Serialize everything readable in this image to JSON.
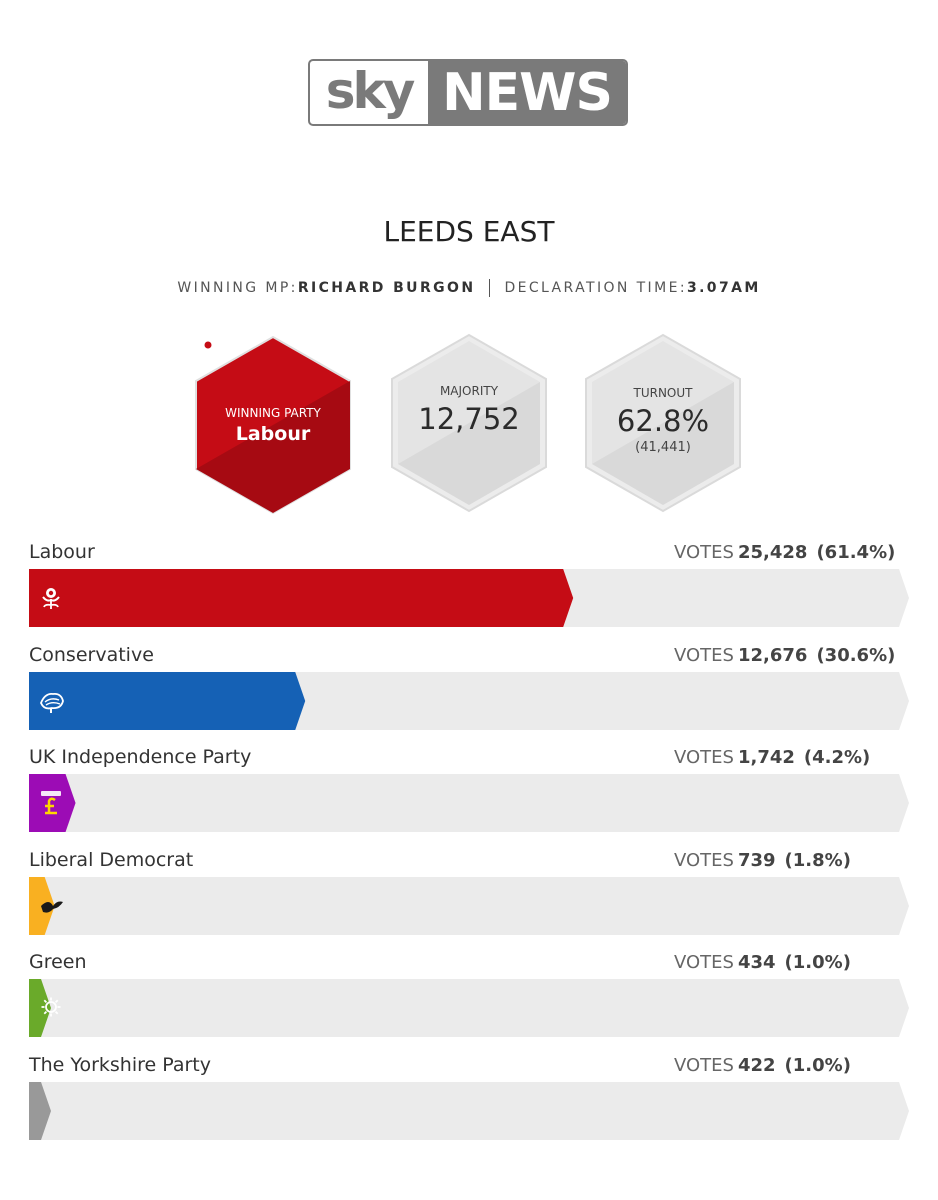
{
  "brand": {
    "sky": "sky",
    "news": "NEWS"
  },
  "constituency": "LEEDS EAST",
  "winning_mp_label": "WINNING MP:",
  "winning_mp": "RICHARD BURGON",
  "declaration_label": "DECLARATION TIME:",
  "declaration_time": "3.07AM",
  "winning_party": {
    "label": "WINNING PARTY",
    "name": "Labour",
    "color": "#c50c15"
  },
  "majority": {
    "label": "MAJORITY",
    "value": "12,752"
  },
  "turnout": {
    "label": "TURNOUT",
    "value": "62.8%",
    "count": "(41,441)"
  },
  "chart_data": {
    "type": "bar",
    "orientation": "horizontal",
    "votes_label": "VOTES",
    "xlim": [
      0,
      100
    ],
    "categories": [
      "Labour",
      "Conservative",
      "UK Independence Party",
      "Liberal Democrat",
      "Green",
      "The Yorkshire Party"
    ],
    "series": [
      {
        "values": [
          61.4,
          30.6,
          4.2,
          1.8,
          1.0,
          1.0
        ],
        "votes": [
          "25,428",
          "12,676",
          "1,742",
          "739",
          "434",
          "422"
        ],
        "percent_labels": [
          "(61.4%)",
          "(30.6%)",
          "(4.2%)",
          "(1.8%)",
          "(1.0%)",
          "(1.0%)"
        ],
        "colors": [
          "#c50c15",
          "#1561b5",
          "#9c0cb5",
          "#f9b021",
          "#6aaa2a",
          "#999999"
        ],
        "icons": [
          "labour-rose-icon",
          "conservative-tree-icon",
          "ukip-pound-icon",
          "libdem-bird-icon",
          "green-sunflower-icon",
          ""
        ]
      }
    ]
  }
}
